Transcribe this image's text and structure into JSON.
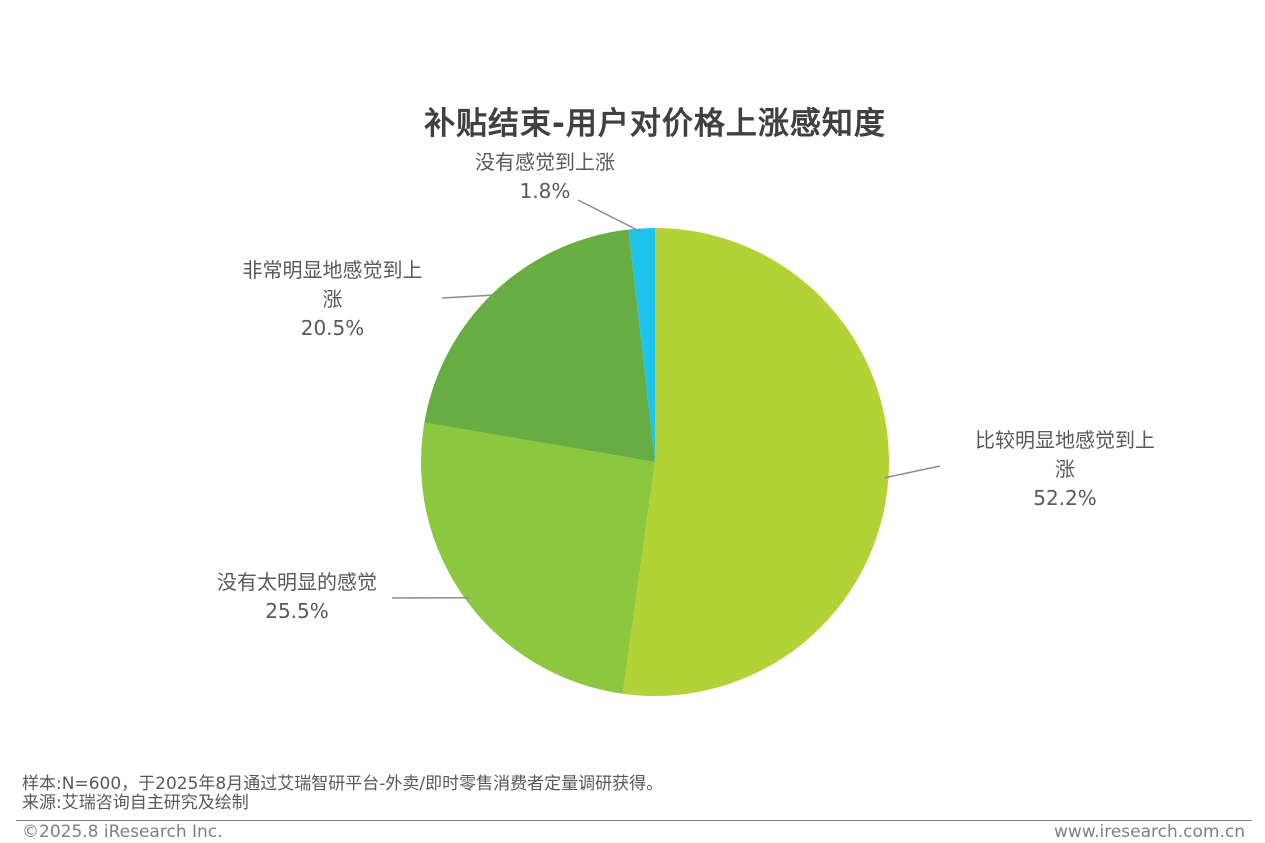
{
  "chart_data": {
    "type": "pie",
    "title": "补贴结束-用户对价格上涨感知度",
    "slices": [
      {
        "name_lines": [
          "比较明显地感觉到上",
          "涨"
        ],
        "value": 52.2,
        "value_label": "52.2%",
        "color": "#b3d236"
      },
      {
        "name_lines": [
          "没有太明显的感觉"
        ],
        "value": 25.5,
        "value_label": "25.5%",
        "color": "#8dc63f"
      },
      {
        "name_lines": [
          "非常明显地感觉到上",
          "涨"
        ],
        "value": 20.5,
        "value_label": "20.5%",
        "color": "#66ad44"
      },
      {
        "name_lines": [
          "没有感觉到上涨"
        ],
        "value": 1.8,
        "value_label": "1.8%",
        "color": "#1cc4ee"
      }
    ],
    "start": "12 o'clock",
    "direction": "clockwise",
    "legend": "none"
  },
  "footer": {
    "sample": "样本:N=600，于2025年8月通过艾瑞智研平台-外卖/即时零售消费者定量调研获得。",
    "source": "来源:艾瑞咨询自主研究及绘制",
    "copyright": "©2025.8 iResearch Inc.",
    "website": "www.iresearch.com.cn"
  }
}
